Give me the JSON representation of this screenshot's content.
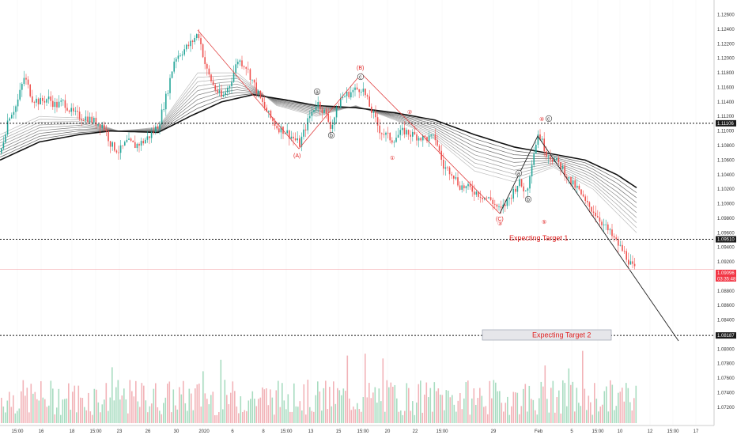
{
  "chart_data": {
    "type": "candlestick",
    "instrument_hint": "price chart with Elliott wave annotations",
    "ylim": [
      1.071,
      1.1265
    ],
    "y_ticks": [
      "1.12600",
      "1.12400",
      "1.12200",
      "1.12000",
      "1.11800",
      "1.11600",
      "1.11400",
      "1.11200",
      "1.11000",
      "1.10800",
      "1.10600",
      "1.10400",
      "1.10200",
      "1.10000",
      "1.09800",
      "1.09600",
      "1.09400",
      "1.09200",
      "1.09000",
      "1.08800",
      "1.08600",
      "1.08400",
      "1.08200",
      "1.08000",
      "1.07800",
      "1.07600",
      "1.07400",
      "1.07200"
    ],
    "x_ticks": [
      "15:00",
      "16",
      "18",
      "15:00",
      "23",
      "26",
      "30",
      "2020",
      "6",
      "8",
      "15:00",
      "13",
      "15",
      "15:00",
      "20",
      "22",
      "15:00",
      "29",
      "Feb",
      "5",
      "15:00",
      "10",
      "12",
      "15:00",
      "17"
    ],
    "levels": [
      {
        "label": "1.11106",
        "value": 1.11106,
        "style": "dotted"
      },
      {
        "label": "1.09510",
        "value": 1.0951,
        "style": "dotted"
      },
      {
        "label": "1.08187",
        "value": 1.08187,
        "style": "dotted"
      }
    ],
    "current_price": {
      "label": "1.09096",
      "countdown": "03:35:48",
      "value": 1.09096
    },
    "targets": [
      {
        "text": "Expecting Target 1"
      },
      {
        "text": "Expecting Target 2"
      }
    ],
    "wave_labels": [
      {
        "text": "(A)",
        "color": "#e02020"
      },
      {
        "text": "(B)",
        "color": "#e02020"
      },
      {
        "text": "(C)",
        "color": "#e02020"
      },
      {
        "text": "a",
        "color": "#333333"
      },
      {
        "text": "b",
        "color": "#333333"
      },
      {
        "text": "c",
        "color": "#333333"
      },
      {
        "text": "a",
        "color": "#333333"
      },
      {
        "text": "b",
        "color": "#333333"
      },
      {
        "text": "c",
        "color": "#333333"
      },
      {
        "text": "①",
        "color": "#e02020"
      },
      {
        "text": "②",
        "color": "#e02020"
      },
      {
        "text": "③",
        "color": "#e02020"
      },
      {
        "text": "④",
        "color": "#e02020"
      },
      {
        "text": "⑤",
        "color": "#e02020"
      }
    ],
    "price_path": [
      [
        0,
        1.107
      ],
      [
        10,
        1.112
      ],
      [
        20,
        1.1135
      ],
      [
        30,
        1.1175
      ],
      [
        40,
        1.1145
      ],
      [
        50,
        1.114
      ],
      [
        60,
        1.1145
      ],
      [
        70,
        1.1135
      ],
      [
        80,
        1.114
      ],
      [
        90,
        1.1125
      ],
      [
        100,
        1.112
      ],
      [
        110,
        1.1118
      ],
      [
        120,
        1.1112
      ],
      [
        130,
        1.1108
      ],
      [
        140,
        1.108
      ],
      [
        150,
        1.1072
      ],
      [
        160,
        1.1085
      ],
      [
        170,
        1.108
      ],
      [
        180,
        1.1085
      ],
      [
        190,
        1.1095
      ],
      [
        200,
        1.111
      ],
      [
        210,
        1.115
      ],
      [
        220,
        1.12
      ],
      [
        230,
        1.121
      ],
      [
        240,
        1.122
      ],
      [
        250,
        1.1235
      ],
      [
        260,
        1.1185
      ],
      [
        270,
        1.116
      ],
      [
        280,
        1.1145
      ],
      [
        290,
        1.1165
      ],
      [
        300,
        1.1198
      ],
      [
        310,
        1.119
      ],
      [
        320,
        1.1165
      ],
      [
        330,
        1.114
      ],
      [
        340,
        1.112
      ],
      [
        350,
        1.1105
      ],
      [
        360,
        1.11
      ],
      [
        370,
        1.109
      ],
      [
        378,
        1.1082
      ],
      [
        390,
        1.1118
      ],
      [
        400,
        1.114
      ],
      [
        410,
        1.1125
      ],
      [
        418,
        1.1105
      ],
      [
        430,
        1.1145
      ],
      [
        445,
        1.1155
      ],
      [
        457,
        1.116
      ],
      [
        468,
        1.113
      ],
      [
        480,
        1.11
      ],
      [
        495,
        1.1088
      ],
      [
        510,
        1.11
      ],
      [
        520,
        1.1095
      ],
      [
        535,
        1.109
      ],
      [
        550,
        1.109
      ],
      [
        560,
        1.105
      ],
      [
        570,
        1.1045
      ],
      [
        580,
        1.1025
      ],
      [
        595,
        1.102
      ],
      [
        610,
        1.101
      ],
      [
        620,
        1.1005
      ],
      [
        632,
        1.099
      ],
      [
        642,
        1.1005
      ],
      [
        655,
        1.103
      ],
      [
        665,
        1.1015
      ],
      [
        672,
        1.106
      ],
      [
        680,
        1.1098
      ],
      [
        690,
        1.107
      ],
      [
        700,
        1.106
      ],
      [
        710,
        1.105
      ],
      [
        720,
        1.103
      ],
      [
        730,
        1.102
      ],
      [
        740,
        1.1
      ],
      [
        750,
        1.099
      ],
      [
        760,
        1.0975
      ],
      [
        770,
        1.096
      ],
      [
        780,
        1.0945
      ],
      [
        790,
        1.093
      ],
      [
        800,
        1.091
      ]
    ],
    "ema_fast": [
      [
        0,
        1.1095
      ],
      [
        50,
        1.112
      ],
      [
        100,
        1.1118
      ],
      [
        150,
        1.11
      ],
      [
        200,
        1.1105
      ],
      [
        250,
        1.118
      ],
      [
        300,
        1.118
      ],
      [
        350,
        1.1135
      ],
      [
        400,
        1.112
      ],
      [
        450,
        1.1135
      ],
      [
        500,
        1.1115
      ],
      [
        550,
        1.109
      ],
      [
        600,
        1.1045
      ],
      [
        650,
        1.103
      ],
      [
        700,
        1.105
      ],
      [
        750,
        1.102
      ],
      [
        805,
        1.096
      ]
    ],
    "ema_slow": [
      [
        0,
        1.106
      ],
      [
        50,
        1.1085
      ],
      [
        100,
        1.1095
      ],
      [
        140,
        1.11
      ],
      [
        200,
        1.1098
      ],
      [
        240,
        1.112
      ],
      [
        280,
        1.114
      ],
      [
        320,
        1.115
      ],
      [
        360,
        1.1143
      ],
      [
        400,
        1.1135
      ],
      [
        450,
        1.1132
      ],
      [
        500,
        1.1125
      ],
      [
        550,
        1.1115
      ],
      [
        600,
        1.1095
      ],
      [
        650,
        1.1078
      ],
      [
        700,
        1.1068
      ],
      [
        740,
        1.106
      ],
      [
        780,
        1.104
      ],
      [
        805,
        1.1022
      ]
    ],
    "volume_hint": "green/red volume bars at bottom"
  }
}
